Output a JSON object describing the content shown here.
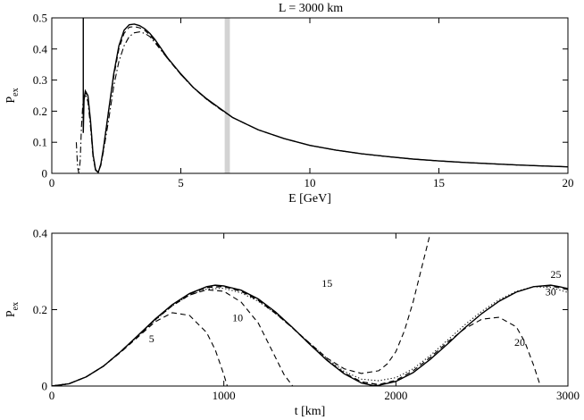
{
  "chart_data": [
    {
      "type": "line",
      "title": "L = 3000 km",
      "xlabel": "E [GeV]",
      "ylabel": "P",
      "ylabel_sub": "ex",
      "xlim": [
        0,
        20
      ],
      "ylim": [
        0,
        0.5
      ],
      "xticks": [
        "0",
        "5",
        "10",
        "15",
        "20"
      ],
      "yticks": [
        "0",
        "0.1",
        "0.2",
        "0.3",
        "0.4",
        "0.5"
      ],
      "xtick_values": [
        0,
        5,
        10,
        15,
        20
      ],
      "ytick_values": [
        0,
        0.1,
        0.2,
        0.3,
        0.4,
        0.5
      ],
      "grid": false,
      "band": {
        "x_from": 6.7,
        "x_to": 6.9,
        "color": "#d3d3d3"
      },
      "series": [
        {
          "style": "solid",
          "x": [
            1.22,
            1.22,
            1.25,
            1.3,
            1.4,
            1.5,
            1.6,
            1.7,
            1.8,
            1.9,
            2.0,
            2.2,
            2.4,
            2.6,
            2.8,
            3.0,
            3.2,
            3.4,
            3.6,
            3.8,
            4.0,
            4.5,
            5.0,
            5.5,
            6.0,
            6.5,
            7.0,
            7.5,
            8.0,
            9.0,
            10.0,
            11.0,
            12.0,
            13.0,
            14.0,
            15.0,
            16.0,
            17.0,
            18.0,
            19.0,
            20.0
          ],
          "y": [
            0.5,
            0.13,
            0.24,
            0.265,
            0.25,
            0.17,
            0.06,
            0.01,
            0.003,
            0.03,
            0.08,
            0.2,
            0.32,
            0.41,
            0.46,
            0.478,
            0.48,
            0.475,
            0.465,
            0.45,
            0.43,
            0.37,
            0.32,
            0.275,
            0.24,
            0.21,
            0.18,
            0.16,
            0.14,
            0.112,
            0.09,
            0.075,
            0.063,
            0.054,
            0.046,
            0.04,
            0.035,
            0.031,
            0.027,
            0.024,
            0.021
          ]
        },
        {
          "style": "dashed",
          "x": [
            1.27,
            1.3,
            1.4,
            1.5,
            1.6,
            1.7,
            1.8,
            1.9,
            2.0,
            2.2,
            2.4,
            2.6,
            2.8,
            3.0,
            3.2,
            3.4,
            3.6,
            3.8,
            4.0,
            4.5,
            5.0,
            5.5,
            6.0,
            6.5,
            7.0,
            7.5,
            8.0,
            9.0,
            10.0,
            11.0,
            12.0,
            13.0,
            14.0,
            15.0,
            16.0,
            17.0,
            18.0,
            19.0,
            20.0
          ],
          "y": [
            0.25,
            0.26,
            0.245,
            0.165,
            0.06,
            0.012,
            0.004,
            0.03,
            0.08,
            0.2,
            0.31,
            0.4,
            0.45,
            0.47,
            0.472,
            0.468,
            0.46,
            0.445,
            0.425,
            0.368,
            0.318,
            0.274,
            0.238,
            0.208,
            0.18,
            0.16,
            0.14,
            0.112,
            0.09,
            0.075,
            0.063,
            0.054,
            0.046,
            0.04,
            0.035,
            0.031,
            0.027,
            0.024,
            0.021
          ]
        },
        {
          "style": "dashdot",
          "x": [
            0.95,
            1.0,
            1.05,
            1.1,
            1.15,
            1.2,
            1.3,
            1.4,
            1.5,
            1.6,
            1.7,
            1.8,
            1.9,
            2.0,
            2.2,
            2.4,
            2.6,
            2.8,
            3.0,
            3.2,
            3.4,
            3.6,
            3.8,
            4.0,
            4.5,
            5.0,
            5.5,
            6.0,
            6.5,
            7.0,
            7.5,
            8.0,
            9.0,
            10.0,
            11.0,
            12.0,
            13.0,
            14.0,
            15.0,
            16.0,
            17.0,
            18.0,
            19.0,
            20.0
          ],
          "y": [
            0.1,
            0.02,
            0.0,
            0.04,
            0.15,
            0.22,
            0.255,
            0.23,
            0.15,
            0.05,
            0.008,
            0.005,
            0.025,
            0.07,
            0.17,
            0.28,
            0.36,
            0.41,
            0.44,
            0.452,
            0.455,
            0.45,
            0.44,
            0.42,
            0.368,
            0.318,
            0.274,
            0.238,
            0.208,
            0.18,
            0.16,
            0.14,
            0.112,
            0.09,
            0.075,
            0.063,
            0.054,
            0.046,
            0.04,
            0.035,
            0.031,
            0.027,
            0.024,
            0.021
          ]
        }
      ]
    },
    {
      "type": "line",
      "title": "",
      "xlabel": "t [km]",
      "ylabel": "P",
      "ylabel_sub": "ex",
      "xlim": [
        0,
        3000
      ],
      "ylim": [
        0,
        0.4
      ],
      "xticks": [
        "0",
        "1000",
        "2000",
        "3000"
      ],
      "yticks": [
        "0",
        "0.2",
        "0.4"
      ],
      "xtick_values": [
        0,
        1000,
        2000,
        3000
      ],
      "ytick_values": [
        0,
        0.2,
        0.4
      ],
      "grid": false,
      "annotations": [
        {
          "text": "5",
          "x": 580,
          "y": 0.115
        },
        {
          "text": "10",
          "x": 1080,
          "y": 0.17
        },
        {
          "text": "15",
          "x": 1600,
          "y": 0.26
        },
        {
          "text": "20",
          "x": 2720,
          "y": 0.105
        },
        {
          "text": "25",
          "x": 2930,
          "y": 0.283
        },
        {
          "text": "30",
          "x": 2900,
          "y": 0.237
        }
      ],
      "series": [
        {
          "style": "solid",
          "x": [
            0,
            100,
            200,
            300,
            400,
            500,
            600,
            700,
            800,
            900,
            950,
            1000,
            1100,
            1200,
            1300,
            1400,
            1500,
            1600,
            1700,
            1800,
            1870,
            1900,
            2000,
            2100,
            2200,
            2300,
            2400,
            2500,
            2600,
            2700,
            2800,
            2900,
            2950,
            3000
          ],
          "y": [
            0,
            0.006,
            0.024,
            0.052,
            0.09,
            0.132,
            0.175,
            0.213,
            0.242,
            0.26,
            0.264,
            0.262,
            0.251,
            0.228,
            0.194,
            0.153,
            0.109,
            0.067,
            0.032,
            0.008,
            0.001,
            0.002,
            0.012,
            0.035,
            0.07,
            0.11,
            0.152,
            0.19,
            0.222,
            0.246,
            0.26,
            0.264,
            0.26,
            0.255
          ]
        },
        {
          "style": "dotted",
          "x": [
            0,
            100,
            200,
            300,
            400,
            500,
            600,
            700,
            800,
            900,
            1000,
            1100,
            1200,
            1300,
            1400,
            1500,
            1600,
            1700,
            1800,
            1900,
            2000,
            2100,
            2200,
            2300,
            2400,
            2500,
            2600,
            2700,
            2800,
            2900,
            3000
          ],
          "y": [
            0,
            0.006,
            0.024,
            0.052,
            0.089,
            0.13,
            0.172,
            0.21,
            0.238,
            0.254,
            0.256,
            0.244,
            0.222,
            0.19,
            0.152,
            0.112,
            0.072,
            0.038,
            0.018,
            0.014,
            0.022,
            0.045,
            0.08,
            0.12,
            0.16,
            0.196,
            0.226,
            0.248,
            0.26,
            0.258,
            0.245
          ]
        },
        {
          "style": "dashed",
          "x": [
            0,
            100,
            200,
            300,
            400,
            500,
            600,
            700,
            800,
            900,
            1000,
            1100,
            1200,
            1300,
            1400,
            1500,
            1600,
            1700,
            1800,
            1900,
            2000,
            2100,
            2200,
            2300,
            2400,
            2500,
            2600,
            2700,
            2800,
            2900,
            3000
          ],
          "y": [
            0,
            0.006,
            0.024,
            0.052,
            0.09,
            0.131,
            0.174,
            0.212,
            0.241,
            0.258,
            0.261,
            0.25,
            0.226,
            0.192,
            0.152,
            0.109,
            0.068,
            0.034,
            0.011,
            0.003,
            0.012,
            0.035,
            0.07,
            0.11,
            0.152,
            0.19,
            0.222,
            0.246,
            0.26,
            0.262,
            0.252
          ]
        },
        {
          "style": "dashed",
          "x": [
            0,
            100,
            200,
            300,
            400,
            500,
            600,
            700,
            800,
            900,
            950,
            1000,
            1020
          ],
          "y": [
            0,
            0.006,
            0.024,
            0.052,
            0.088,
            0.128,
            0.168,
            0.192,
            0.185,
            0.14,
            0.095,
            0.03,
            0
          ]
        },
        {
          "style": "dashed",
          "x": [
            0,
            100,
            200,
            300,
            400,
            500,
            600,
            700,
            800,
            900,
            1000,
            1100,
            1200,
            1250,
            1300,
            1350,
            1400
          ],
          "y": [
            0,
            0.006,
            0.024,
            0.052,
            0.09,
            0.131,
            0.173,
            0.21,
            0.238,
            0.252,
            0.248,
            0.22,
            0.165,
            0.12,
            0.075,
            0.03,
            0
          ]
        },
        {
          "style": "dashed",
          "x": [
            0,
            100,
            200,
            300,
            400,
            500,
            600,
            700,
            800,
            900,
            1000,
            1100,
            1200,
            1300,
            1400,
            1500,
            1600,
            1700,
            1800,
            1900,
            1950,
            2000,
            2050,
            2100,
            2150,
            2200
          ],
          "y": [
            0,
            0.006,
            0.024,
            0.052,
            0.09,
            0.131,
            0.174,
            0.212,
            0.241,
            0.258,
            0.26,
            0.248,
            0.224,
            0.19,
            0.152,
            0.112,
            0.073,
            0.045,
            0.033,
            0.04,
            0.058,
            0.09,
            0.145,
            0.22,
            0.31,
            0.4
          ]
        },
        {
          "style": "dashed",
          "x": [
            0,
            100,
            200,
            300,
            400,
            500,
            600,
            700,
            800,
            900,
            1000,
            1100,
            1200,
            1300,
            1400,
            1500,
            1600,
            1700,
            1800,
            1900,
            2000,
            2100,
            2200,
            2300,
            2400,
            2500,
            2600,
            2700,
            2750,
            2800,
            2840
          ],
          "y": [
            0,
            0.006,
            0.024,
            0.052,
            0.09,
            0.131,
            0.174,
            0.212,
            0.241,
            0.258,
            0.261,
            0.25,
            0.226,
            0.192,
            0.152,
            0.109,
            0.068,
            0.034,
            0.011,
            0.004,
            0.015,
            0.04,
            0.075,
            0.115,
            0.15,
            0.175,
            0.18,
            0.155,
            0.115,
            0.055,
            0
          ]
        }
      ]
    }
  ]
}
